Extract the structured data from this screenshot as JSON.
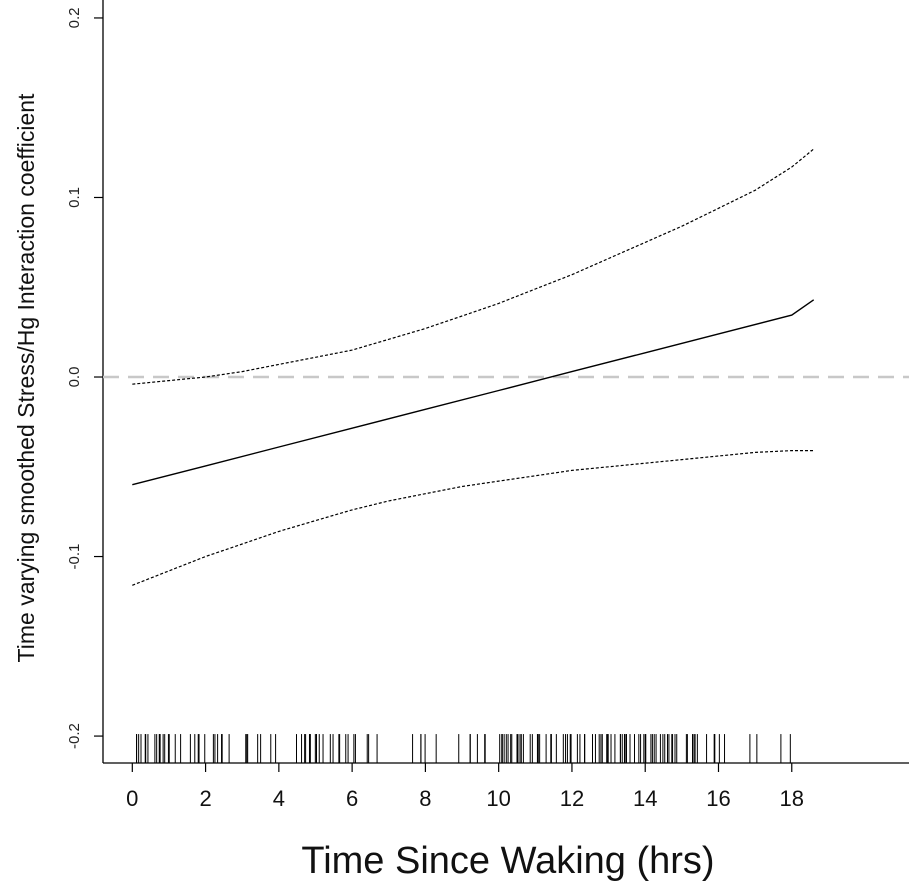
{
  "chart_data": {
    "type": "line",
    "title": "",
    "xlabel": "Time Since Waking (hrs)",
    "ylabel": "Time varying smoothed Stress/Hg Interaction coefficient",
    "xlim": [
      -0.8,
      21.2
    ],
    "ylim": [
      -0.215,
      0.21
    ],
    "xticks": [
      "0",
      "2",
      "4",
      "6",
      "8",
      "10",
      "12",
      "14",
      "16",
      "18"
    ],
    "yticks": [
      "-0.2",
      "-0.1",
      "0.0",
      "0.1",
      "0.2"
    ],
    "grid": false,
    "legend": "none",
    "reference_line": {
      "y": 0,
      "style": "dashed",
      "color": "#c8c8c8"
    },
    "series": [
      {
        "role": "estimate",
        "style": "solid",
        "x": [
          0,
          2,
          4,
          6,
          8,
          10,
          12,
          14,
          16,
          18,
          18.6
        ],
        "y": [
          -0.06,
          -0.0495,
          -0.039,
          -0.0285,
          -0.018,
          -0.0075,
          0.003,
          0.0135,
          0.024,
          0.0345,
          0.043
        ]
      },
      {
        "role": "upper-bound",
        "style": "dotted",
        "x": [
          0,
          1,
          2,
          3,
          4,
          5,
          6,
          7,
          8,
          9,
          10,
          11,
          12,
          13,
          14,
          15,
          16,
          17,
          18,
          18.6
        ],
        "y": [
          -0.004,
          -0.002,
          0.0,
          0.003,
          0.007,
          0.011,
          0.015,
          0.021,
          0.027,
          0.034,
          0.041,
          0.049,
          0.057,
          0.066,
          0.075,
          0.084,
          0.094,
          0.104,
          0.117,
          0.127
        ]
      },
      {
        "role": "lower-bound",
        "style": "dotted",
        "x": [
          0,
          1,
          2,
          3,
          4,
          5,
          6,
          7,
          8,
          9,
          10,
          11,
          12,
          13,
          14,
          15,
          16,
          17,
          18,
          18.6
        ],
        "y": [
          -0.116,
          -0.108,
          -0.1,
          -0.093,
          -0.086,
          -0.08,
          -0.074,
          -0.069,
          -0.065,
          -0.061,
          -0.058,
          -0.055,
          -0.052,
          -0.05,
          -0.048,
          -0.046,
          -0.044,
          -0.042,
          -0.041,
          -0.041
        ]
      }
    ],
    "rug": {
      "clusters": [
        {
          "from": 0.0,
          "to": 1.5,
          "density": 12
        },
        {
          "from": 1.5,
          "to": 3.2,
          "density": 8
        },
        {
          "from": 3.2,
          "to": 4.5,
          "density": 4
        },
        {
          "from": 4.5,
          "to": 6.0,
          "density": 11
        },
        {
          "from": 6.0,
          "to": 7.0,
          "density": 5
        },
        {
          "from": 7.0,
          "to": 9.0,
          "density": 3
        },
        {
          "from": 9.0,
          "to": 9.5,
          "density": 6
        },
        {
          "from": 9.5,
          "to": 10.0,
          "density": 3
        },
        {
          "from": 10.0,
          "to": 14.0,
          "density": 14
        },
        {
          "from": 14.0,
          "to": 15.8,
          "density": 12
        },
        {
          "from": 15.8,
          "to": 17.0,
          "density": 5
        },
        {
          "from": 17.0,
          "to": 18.6,
          "density": 2
        }
      ]
    }
  }
}
